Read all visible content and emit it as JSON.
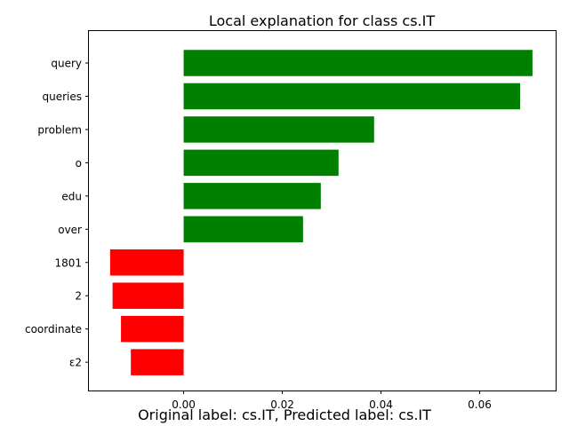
{
  "chart_data": {
    "type": "bar",
    "orientation": "horizontal",
    "title": "Local explanation for class cs.IT",
    "categories": [
      "query",
      "queries",
      "problem",
      "o",
      "edu",
      "over",
      "1801",
      "2",
      "coordinate",
      "ε2"
    ],
    "values": [
      0.0707,
      0.0682,
      0.0386,
      0.0314,
      0.0278,
      0.0242,
      -0.0149,
      -0.0144,
      -0.0127,
      -0.0107
    ],
    "xlim": [
      -0.0192,
      0.0754
    ],
    "xticks": [
      0.0,
      0.02,
      0.04,
      0.06
    ],
    "xtick_labels": [
      "0.00",
      "0.02",
      "0.04",
      "0.06"
    ],
    "positive_color": "#008000",
    "negative_color": "#ff0000",
    "grid": false
  },
  "footer": {
    "caption": "Original label: cs.IT, Predicted label: cs.IT"
  }
}
